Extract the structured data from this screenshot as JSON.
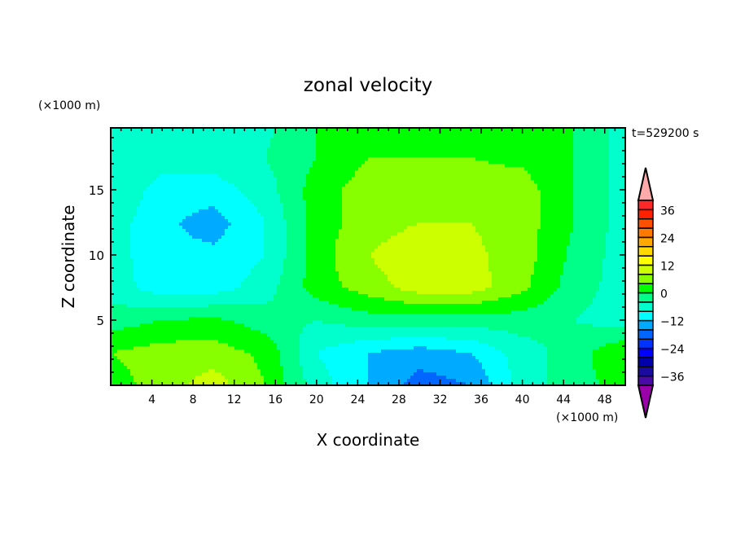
{
  "chart_data": {
    "type": "heatmap",
    "title": "zonal velocity",
    "xlabel": "X coordinate",
    "ylabel": "Z coordinate",
    "x_unit": "(×1000 m)",
    "y_unit": "(×1000 m)",
    "time_label": "t=529200 s",
    "xlim": [
      0,
      50
    ],
    "ylim": [
      0,
      19.75
    ],
    "xticks": [
      4,
      8,
      12,
      16,
      20,
      24,
      28,
      32,
      36,
      40,
      44,
      48
    ],
    "yticks": [
      5,
      10,
      15
    ],
    "grid_x": [
      0,
      5,
      10,
      15,
      20,
      25,
      30,
      35,
      40,
      45,
      50
    ],
    "grid_z": [
      0,
      2.5,
      5,
      7.5,
      10,
      12.5,
      15,
      17.5,
      20
    ],
    "values": [
      [
        2,
        6,
        10,
        4,
        -6,
        -12,
        -18,
        -16,
        -6,
        -2,
        2
      ],
      [
        4,
        6,
        6,
        3,
        -8,
        -12,
        -14,
        -12,
        -6,
        -2,
        4
      ],
      [
        -2,
        0,
        1,
        -2,
        -4,
        -2,
        -2,
        -2,
        -2,
        -4,
        -6
      ],
      [
        -6,
        -10,
        -10,
        -6,
        2,
        6,
        10,
        10,
        5,
        -2,
        -6
      ],
      [
        -6,
        -11,
        -11,
        -8,
        2,
        8,
        11,
        9,
        6,
        -1,
        -6
      ],
      [
        -6,
        -11,
        -14,
        -8,
        2,
        6,
        8,
        8,
        6,
        0,
        -6
      ],
      [
        -4,
        -10,
        -10,
        -6,
        2,
        6,
        6,
        6,
        6,
        0,
        -6
      ],
      [
        -4,
        -6,
        -6,
        -4,
        0,
        4,
        4,
        4,
        3,
        0,
        -6
      ],
      [
        -5,
        -5,
        -5,
        -5,
        0,
        3,
        3,
        3,
        2,
        0,
        -6
      ]
    ],
    "colorbar": {
      "levels_min": -40,
      "levels_max": 40,
      "step": 4,
      "tick_labels": [
        "36",
        "24",
        "12",
        "0",
        "−12",
        "−24",
        "−36"
      ],
      "tick_values": [
        36,
        24,
        12,
        0,
        -12,
        -24,
        -36
      ],
      "colors_low_to_high": [
        "#4a0aa8",
        "#1a0aa0",
        "#0000aa",
        "#0000ff",
        "#0033ff",
        "#0066ff",
        "#00aaff",
        "#00ffff",
        "#00ffcc",
        "#00ff88",
        "#00ff00",
        "#88ff00",
        "#ccff00",
        "#ffff00",
        "#ffd800",
        "#ffa800",
        "#ff7800",
        "#ff5000",
        "#ff2000",
        "#ff2828"
      ],
      "under_color": "#9900aa",
      "over_color": "#ffaaaa"
    }
  }
}
